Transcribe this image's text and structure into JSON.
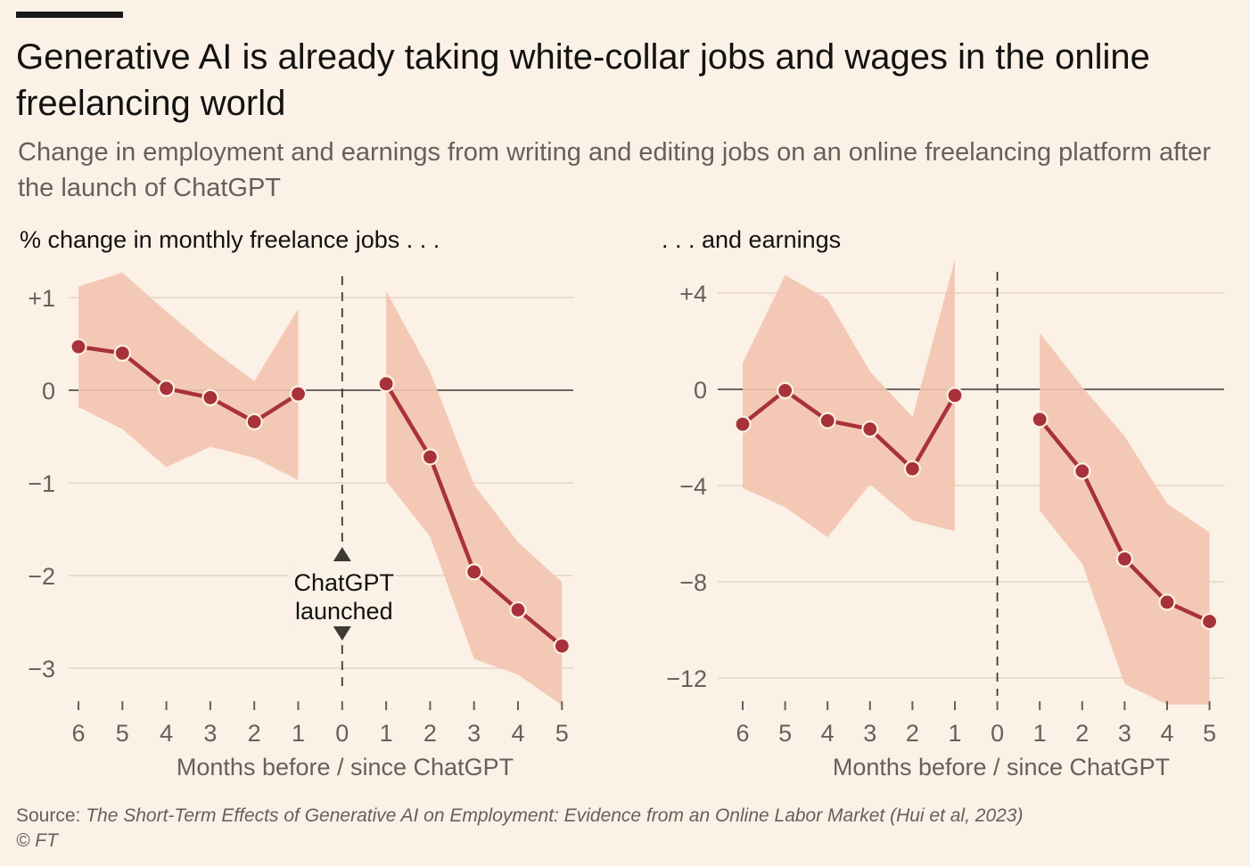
{
  "header": {
    "title": "Generative AI is already taking white-collar jobs and wages in the online freelancing world",
    "subtitle": "Change in employment and earnings from writing and editing jobs on an online freelancing platform after the launch of ChatGPT"
  },
  "colors": {
    "background": "#FCF1E6",
    "line": "#A8323A",
    "band": "#F2C4B0",
    "grid": "#E3D5C8",
    "zero_line": "#6b6560"
  },
  "annotation": {
    "line1": "ChatGPT",
    "line2": "launched"
  },
  "chart_data": [
    {
      "type": "line",
      "panel_title": "% change in monthly freelance jobs . . .",
      "xlabel": "Months before / since ChatGPT",
      "x_ticks": [
        "6",
        "5",
        "4",
        "3",
        "2",
        "1",
        "0",
        "1",
        "2",
        "3",
        "4",
        "5"
      ],
      "y_ticks": [
        "+1",
        "0",
        "−1",
        "−2",
        "−3"
      ],
      "y_tick_values": [
        1,
        0,
        -1,
        -2,
        -3
      ],
      "ylim": [
        -3.35,
        1.25
      ],
      "before": {
        "x": [
          -6,
          -5,
          -4,
          -3,
          -2,
          -1
        ],
        "values": [
          0.47,
          0.4,
          0.02,
          -0.08,
          -0.34,
          -0.04
        ],
        "upper": [
          1.12,
          1.27,
          0.85,
          0.45,
          0.1,
          0.88
        ],
        "lower": [
          -0.18,
          -0.42,
          -0.83,
          -0.61,
          -0.73,
          -0.97
        ]
      },
      "after": {
        "x": [
          1,
          2,
          3,
          4,
          5
        ],
        "values": [
          0.07,
          -0.72,
          -1.96,
          -2.37,
          -2.76
        ],
        "upper": [
          1.07,
          0.2,
          -1.02,
          -1.64,
          -2.07
        ],
        "lower": [
          -0.98,
          -1.58,
          -2.9,
          -3.07,
          -3.4
        ]
      }
    },
    {
      "type": "line",
      "panel_title": ". . . and earnings",
      "xlabel": "Months before / since ChatGPT",
      "x_ticks": [
        "6",
        "5",
        "4",
        "3",
        "2",
        "1",
        "0",
        "1",
        "2",
        "3",
        "4",
        "5"
      ],
      "y_ticks": [
        "+4",
        "0",
        "−4",
        "−8",
        "−12"
      ],
      "y_tick_values": [
        4,
        0,
        -4,
        -8,
        -12
      ],
      "ylim": [
        -13.2,
        5.5
      ],
      "before": {
        "x": [
          -6,
          -5,
          -4,
          -3,
          -2,
          -1
        ],
        "values": [
          -1.45,
          -0.05,
          -1.3,
          -1.65,
          -3.3,
          -0.25
        ],
        "upper": [
          1.1,
          4.75,
          3.75,
          0.75,
          -1.15,
          5.4
        ],
        "lower": [
          -4.1,
          -4.9,
          -6.15,
          -3.95,
          -5.45,
          -5.9
        ]
      },
      "after": {
        "x": [
          1,
          2,
          3,
          4,
          5
        ],
        "values": [
          -1.25,
          -3.4,
          -7.05,
          -8.85,
          -9.65
        ],
        "upper": [
          2.35,
          0.1,
          -1.95,
          -4.75,
          -5.95
        ],
        "lower": [
          -5.05,
          -7.25,
          -12.25,
          -13.1,
          -13.1
        ]
      }
    }
  ],
  "footer": {
    "source_label": "Source:",
    "source_text": "The Short-Term Effects of Generative AI on Employment: Evidence from an Online Labor Market (Hui et al, 2023)",
    "copyright": "© FT"
  }
}
